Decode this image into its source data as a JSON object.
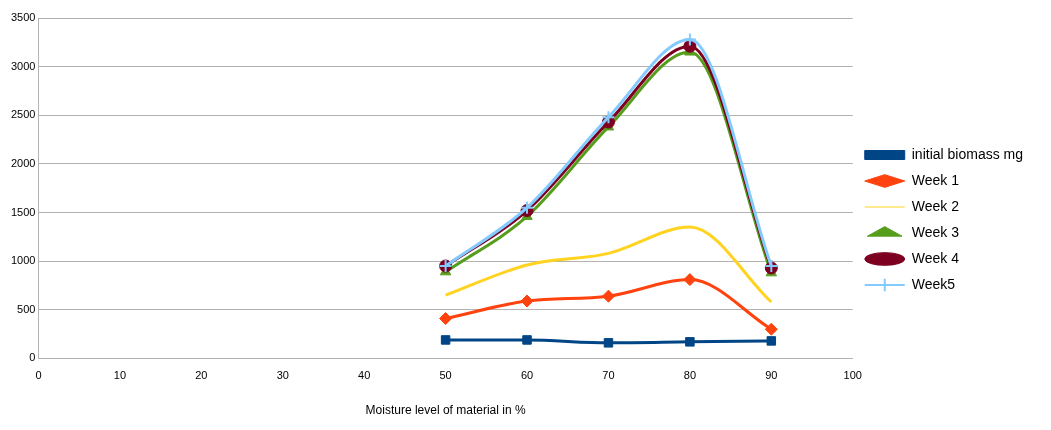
{
  "chart_data": {
    "type": "line",
    "xlabel": "Moisture level of material in %",
    "x": [
      50,
      60,
      70,
      80,
      90
    ],
    "series": [
      {
        "name": "initial biomass mg",
        "color": "#004586",
        "marker": "square",
        "values": [
          190,
          190,
          160,
          170,
          180
        ]
      },
      {
        "name": "Week 1",
        "color": "#ff420e",
        "marker": "diamond",
        "values": [
          410,
          590,
          640,
          810,
          300
        ]
      },
      {
        "name": "Week 2",
        "color": "#ffd320",
        "marker": "none",
        "values": [
          650,
          960,
          1080,
          1350,
          580
        ]
      },
      {
        "name": "Week 3",
        "color": "#579d1c",
        "marker": "triangle",
        "values": [
          890,
          1460,
          2380,
          3150,
          880
        ]
      },
      {
        "name": "Week 4",
        "color": "#7e0021",
        "marker": "circle",
        "values": [
          950,
          1520,
          2430,
          3210,
          930
        ]
      },
      {
        "name": "Week5",
        "color": "#83caff",
        "marker": "cross",
        "values": [
          950,
          1550,
          2480,
          3280,
          950
        ]
      }
    ],
    "xlim": [
      0,
      100
    ],
    "xticks": [
      0,
      10,
      20,
      30,
      40,
      50,
      60,
      70,
      80,
      90,
      100
    ],
    "ylim": [
      0,
      3500
    ],
    "yticks": [
      0,
      500,
      1000,
      1500,
      2000,
      2500,
      3000,
      3500
    ],
    "grid": "y",
    "legend": "right"
  }
}
